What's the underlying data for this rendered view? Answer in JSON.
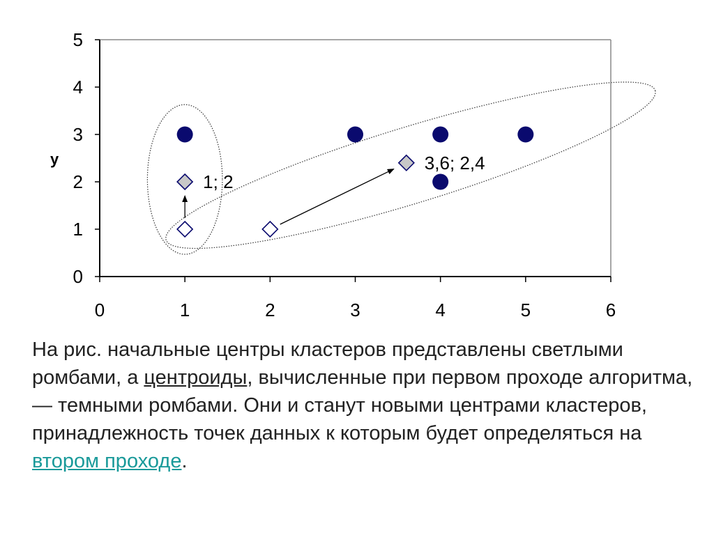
{
  "chart_data": {
    "type": "scatter",
    "ylabel": "y",
    "xlim": [
      0,
      6
    ],
    "ylim": [
      0,
      5
    ],
    "xticks": [
      0,
      1,
      2,
      3,
      4,
      5,
      6
    ],
    "yticks": [
      0,
      1,
      2,
      3,
      4,
      5
    ],
    "grid": false,
    "series": [
      {
        "marker": "filled-circle",
        "color": "#0a0a6e",
        "points": [
          [
            1,
            3
          ],
          [
            3,
            3
          ],
          [
            4,
            3
          ],
          [
            5,
            3
          ],
          [
            4,
            2
          ]
        ]
      },
      {
        "marker": "open-diamond",
        "points": [
          [
            1,
            1
          ],
          [
            2,
            1
          ]
        ]
      },
      {
        "marker": "gray-diamond",
        "color": "#c8c8c8",
        "points": [
          [
            1,
            2
          ],
          [
            3.6,
            2.4
          ]
        ]
      }
    ],
    "arrows": [
      {
        "from": [
          1,
          1
        ],
        "to": [
          1,
          2
        ]
      },
      {
        "from": [
          2,
          1
        ],
        "to": [
          3.6,
          2.4
        ]
      }
    ],
    "ellipses": [
      {
        "cx": 1,
        "cy": 2.05,
        "rx": 0.44,
        "ry": 1.58,
        "angle": 0
      },
      {
        "cx": 3.65,
        "cy": 2.35,
        "rx": 3.8,
        "ry": 1.3,
        "angle": -17
      }
    ],
    "annotations": [
      {
        "text": "1; 2",
        "x": 1,
        "y": 2
      },
      {
        "text": "3,6; 2,4",
        "x": 3.6,
        "y": 2.4
      }
    ]
  },
  "caption": {
    "part1": "На рис. начальные центры кластеров представлены светлыми ромбами, а ",
    "underlined_term": "центроиды",
    "part2": ", вычисленные при первом проходе алгоритма, — темными ромбами. Они и станут новыми центрами кластеров, принадлежность точек данных к которым будет определяться на ",
    "link_text": "втором проходе",
    "part3": "."
  }
}
